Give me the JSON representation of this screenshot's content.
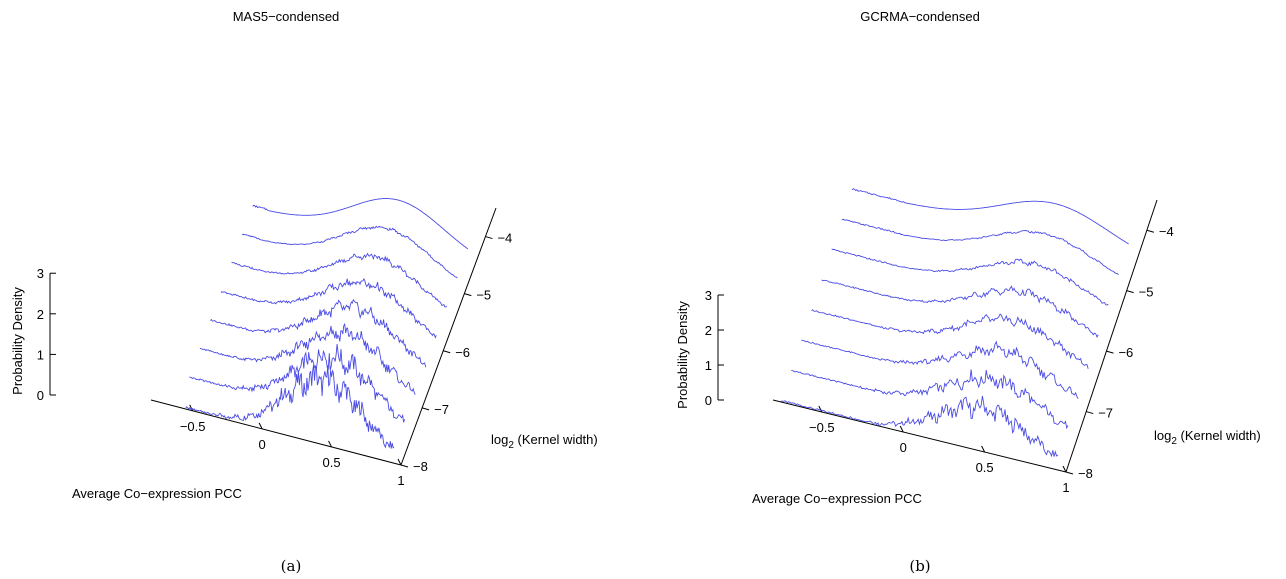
{
  "chart_data": [
    {
      "type": "line",
      "panel_caption": "(a)",
      "title": "MAS5−condensed",
      "xlabel": "Average Co−expression PCC",
      "ylabel_prefix": "log",
      "ylabel_sub": "2",
      "ylabel_suffix": " (Kernel width)",
      "zlabel": "Probability Density",
      "x_ticks": [
        "−0.5",
        "0",
        "0.5",
        "1"
      ],
      "y_ticks": [
        "−8",
        "−7",
        "−6",
        "−5",
        "−4"
      ],
      "z_ticks": [
        "0",
        "1",
        "2",
        "3"
      ],
      "xlim": [
        -0.8,
        1
      ],
      "ylim": [
        -8,
        -3.5
      ],
      "zlim": [
        0,
        3
      ],
      "peak_x": 0.45,
      "series": [
        {
          "log2_width": -8.0,
          "peak": 1.6,
          "x_start": -0.55,
          "x_end": 0.95
        },
        {
          "log2_width": -7.5,
          "peak": 1.45,
          "x_start": -0.6,
          "x_end": 0.95
        },
        {
          "log2_width": -7.0,
          "peak": 1.35,
          "x_start": -0.6,
          "x_end": 0.95
        },
        {
          "log2_width": -6.5,
          "peak": 1.25,
          "x_start": -0.6,
          "x_end": 0.95
        },
        {
          "log2_width": -6.0,
          "peak": 1.15,
          "x_start": -0.6,
          "x_end": 0.95
        },
        {
          "log2_width": -5.5,
          "peak": 1.1,
          "x_start": -0.6,
          "x_end": 0.95
        },
        {
          "log2_width": -5.0,
          "peak": 1.1,
          "x_start": -0.6,
          "x_end": 0.95
        },
        {
          "log2_width": -4.5,
          "peak": 1.1,
          "x_start": -0.6,
          "x_end": 0.95
        }
      ]
    },
    {
      "type": "line",
      "panel_caption": "(b)",
      "title": "GCRMA−condensed",
      "xlabel": "Average Co−expression PCC",
      "ylabel_prefix": "log",
      "ylabel_sub": "2",
      "ylabel_suffix": " (Kernel width)",
      "zlabel": "Probability Density",
      "x_ticks": [
        "−0.5",
        "0",
        "0.5",
        "1"
      ],
      "y_ticks": [
        "−8",
        "−7",
        "−6",
        "−5",
        "−4"
      ],
      "z_ticks": [
        "0",
        "1",
        "2",
        "3"
      ],
      "xlim": [
        -0.8,
        1
      ],
      "ylim": [
        -8,
        -3.5
      ],
      "zlim": [
        0,
        3
      ],
      "peak_x": 0.5,
      "series": [
        {
          "log2_width": -8.0,
          "peak": 1.25,
          "x_start": -0.75,
          "x_end": 0.95
        },
        {
          "log2_width": -7.5,
          "peak": 1.2,
          "x_start": -0.75,
          "x_end": 0.95
        },
        {
          "log2_width": -7.0,
          "peak": 1.15,
          "x_start": -0.75,
          "x_end": 0.95
        },
        {
          "log2_width": -6.5,
          "peak": 1.15,
          "x_start": -0.75,
          "x_end": 0.95
        },
        {
          "log2_width": -6.0,
          "peak": 1.1,
          "x_start": -0.75,
          "x_end": 0.95
        },
        {
          "log2_width": -5.5,
          "peak": 1.05,
          "x_start": -0.75,
          "x_end": 0.95
        },
        {
          "log2_width": -5.0,
          "peak": 1.05,
          "x_start": -0.75,
          "x_end": 0.95
        },
        {
          "log2_width": -4.5,
          "peak": 1.05,
          "x_start": -0.75,
          "x_end": 0.95
        }
      ]
    }
  ]
}
